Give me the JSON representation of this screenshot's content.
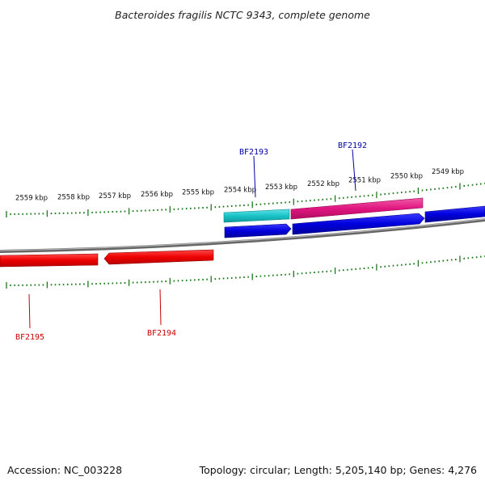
{
  "title": "Bacteroides fragilis NCTC 9343, complete genome",
  "footer": {
    "accession": "Accession: NC_003228",
    "summary": "Topology: circular; Length: 5,205,140 bp; Genes: 4,276"
  },
  "scale_labels": [
    "2559 kbp",
    "2558 kbp",
    "2557 kbp",
    "2556 kbp",
    "2555 kbp",
    "2554 kbp",
    "2553 kbp",
    "2552 kbp",
    "2551 kbp",
    "2550 kbp",
    "2549 kbp"
  ],
  "genes": {
    "BF2193": "BF2193",
    "BF2192": "BF2192",
    "BF2195": "BF2195",
    "BF2194": "BF2194"
  },
  "colors": {
    "forward_label": "#0000aa",
    "reverse_label": "#cc0000",
    "cds_forward": "#0000dd",
    "cds_reverse": "#ee0000",
    "feature_cyan": "#19c3c8",
    "feature_magenta": "#e0167f",
    "ticks": "#1a7a1a",
    "backbone": "#777777"
  }
}
